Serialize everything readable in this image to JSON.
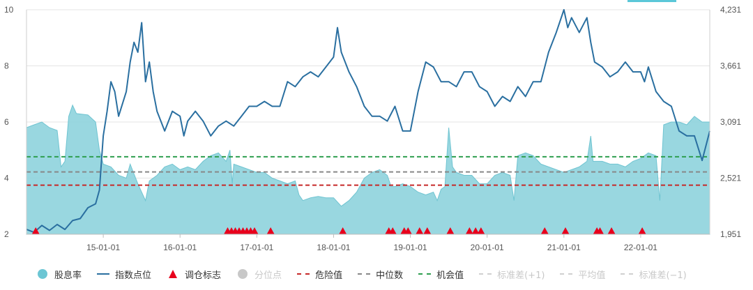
{
  "chart_data": {
    "type": "area+line",
    "title": "",
    "x_ticks": [
      "15-01-01",
      "16-01-01",
      "17-01-01",
      "18-01-01",
      "19-01-01",
      "20-01-01",
      "21-01-01",
      "22-01-01"
    ],
    "y_left_ticks": [
      "2",
      "4",
      "6",
      "8",
      "10"
    ],
    "y_left_range": [
      2,
      10
    ],
    "y_right_ticks": [
      "1,951",
      "2,521",
      "3,091",
      "3,661",
      "4,231"
    ],
    "y_right_range": [
      1951,
      4231
    ],
    "x_range_years": [
      2014.0,
      2022.9
    ],
    "grid": true,
    "legend_position": "bottom",
    "reference_lines": {
      "danger": 3.75,
      "median": 4.22,
      "opportunity": 4.76
    },
    "series": [
      {
        "name": "股息率",
        "type": "area",
        "axis": "left",
        "color": "#8ed3dd",
        "points": [
          [
            2014.0,
            5.8
          ],
          [
            2014.1,
            5.9
          ],
          [
            2014.2,
            6.0
          ],
          [
            2014.3,
            5.8
          ],
          [
            2014.4,
            5.7
          ],
          [
            2014.45,
            4.4
          ],
          [
            2014.5,
            4.6
          ],
          [
            2014.55,
            6.2
          ],
          [
            2014.6,
            6.6
          ],
          [
            2014.65,
            6.3
          ],
          [
            2014.8,
            6.25
          ],
          [
            2014.9,
            6.0
          ],
          [
            2014.95,
            5.0
          ],
          [
            2015.0,
            4.5
          ],
          [
            2015.1,
            4.4
          ],
          [
            2015.2,
            4.1
          ],
          [
            2015.3,
            4.0
          ],
          [
            2015.35,
            4.5
          ],
          [
            2015.45,
            3.8
          ],
          [
            2015.55,
            3.2
          ],
          [
            2015.6,
            3.9
          ],
          [
            2015.7,
            4.1
          ],
          [
            2015.8,
            4.4
          ],
          [
            2015.9,
            4.5
          ],
          [
            2016.0,
            4.3
          ],
          [
            2016.1,
            4.4
          ],
          [
            2016.2,
            4.3
          ],
          [
            2016.3,
            4.6
          ],
          [
            2016.4,
            4.8
          ],
          [
            2016.5,
            4.9
          ],
          [
            2016.6,
            4.6
          ],
          [
            2016.65,
            5.0
          ],
          [
            2016.68,
            3.8
          ],
          [
            2016.7,
            4.5
          ],
          [
            2016.8,
            4.4
          ],
          [
            2016.9,
            4.3
          ],
          [
            2017.0,
            4.2
          ],
          [
            2017.1,
            4.2
          ],
          [
            2017.2,
            4.0
          ],
          [
            2017.3,
            3.9
          ],
          [
            2017.4,
            3.8
          ],
          [
            2017.5,
            3.9
          ],
          [
            2017.55,
            3.4
          ],
          [
            2017.6,
            3.2
          ],
          [
            2017.7,
            3.3
          ],
          [
            2017.8,
            3.35
          ],
          [
            2017.9,
            3.3
          ],
          [
            2018.0,
            3.3
          ],
          [
            2018.1,
            3.0
          ],
          [
            2018.2,
            3.2
          ],
          [
            2018.3,
            3.5
          ],
          [
            2018.4,
            4.0
          ],
          [
            2018.5,
            4.2
          ],
          [
            2018.6,
            4.3
          ],
          [
            2018.7,
            4.1
          ],
          [
            2018.75,
            3.7
          ],
          [
            2018.8,
            3.7
          ],
          [
            2018.9,
            3.8
          ],
          [
            2019.0,
            3.7
          ],
          [
            2019.1,
            3.5
          ],
          [
            2019.2,
            3.4
          ],
          [
            2019.3,
            3.5
          ],
          [
            2019.35,
            3.2
          ],
          [
            2019.4,
            3.6
          ],
          [
            2019.45,
            3.7
          ],
          [
            2019.5,
            5.8
          ],
          [
            2019.55,
            4.4
          ],
          [
            2019.6,
            4.2
          ],
          [
            2019.7,
            4.1
          ],
          [
            2019.8,
            4.1
          ],
          [
            2019.9,
            3.8
          ],
          [
            2020.0,
            3.8
          ],
          [
            2020.1,
            4.1
          ],
          [
            2020.2,
            4.2
          ],
          [
            2020.3,
            4.1
          ],
          [
            2020.35,
            3.2
          ],
          [
            2020.4,
            4.8
          ],
          [
            2020.5,
            4.9
          ],
          [
            2020.6,
            4.8
          ],
          [
            2020.7,
            4.5
          ],
          [
            2020.8,
            4.4
          ],
          [
            2020.9,
            4.3
          ],
          [
            2021.0,
            4.2
          ],
          [
            2021.1,
            4.3
          ],
          [
            2021.2,
            4.4
          ],
          [
            2021.3,
            4.6
          ],
          [
            2021.35,
            5.5
          ],
          [
            2021.38,
            4.6
          ],
          [
            2021.5,
            4.6
          ],
          [
            2021.6,
            4.5
          ],
          [
            2021.7,
            4.5
          ],
          [
            2021.8,
            4.4
          ],
          [
            2021.9,
            4.6
          ],
          [
            2022.0,
            4.7
          ],
          [
            2022.1,
            4.9
          ],
          [
            2022.2,
            4.8
          ],
          [
            2022.25,
            3.2
          ],
          [
            2022.3,
            5.9
          ],
          [
            2022.4,
            6.0
          ],
          [
            2022.5,
            6.0
          ],
          [
            2022.6,
            5.9
          ],
          [
            2022.7,
            6.2
          ],
          [
            2022.8,
            6.0
          ],
          [
            2022.9,
            6.0
          ]
        ]
      },
      {
        "name": "指数点位",
        "type": "line",
        "axis": "right",
        "color": "#2a6fa0",
        "points": [
          [
            2014.0,
            2000
          ],
          [
            2014.1,
            1970
          ],
          [
            2014.2,
            2040
          ],
          [
            2014.3,
            1990
          ],
          [
            2014.4,
            2050
          ],
          [
            2014.5,
            2000
          ],
          [
            2014.6,
            2090
          ],
          [
            2014.7,
            2110
          ],
          [
            2014.8,
            2220
          ],
          [
            2014.9,
            2260
          ],
          [
            2014.95,
            2400
          ],
          [
            2015.0,
            2950
          ],
          [
            2015.05,
            3200
          ],
          [
            2015.1,
            3500
          ],
          [
            2015.15,
            3400
          ],
          [
            2015.2,
            3150
          ],
          [
            2015.3,
            3400
          ],
          [
            2015.35,
            3700
          ],
          [
            2015.4,
            3900
          ],
          [
            2015.45,
            3800
          ],
          [
            2015.5,
            4100
          ],
          [
            2015.55,
            3500
          ],
          [
            2015.6,
            3700
          ],
          [
            2015.65,
            3400
          ],
          [
            2015.7,
            3200
          ],
          [
            2015.8,
            3000
          ],
          [
            2015.9,
            3200
          ],
          [
            2016.0,
            3150
          ],
          [
            2016.05,
            2950
          ],
          [
            2016.1,
            3100
          ],
          [
            2016.2,
            3200
          ],
          [
            2016.3,
            3100
          ],
          [
            2016.4,
            2950
          ],
          [
            2016.5,
            3050
          ],
          [
            2016.6,
            3100
          ],
          [
            2016.7,
            3050
          ],
          [
            2016.8,
            3150
          ],
          [
            2016.9,
            3250
          ],
          [
            2017.0,
            3250
          ],
          [
            2017.1,
            3300
          ],
          [
            2017.2,
            3250
          ],
          [
            2017.3,
            3250
          ],
          [
            2017.4,
            3500
          ],
          [
            2017.5,
            3450
          ],
          [
            2017.6,
            3550
          ],
          [
            2017.7,
            3600
          ],
          [
            2017.8,
            3550
          ],
          [
            2017.9,
            3650
          ],
          [
            2018.0,
            3750
          ],
          [
            2018.05,
            4050
          ],
          [
            2018.1,
            3800
          ],
          [
            2018.2,
            3600
          ],
          [
            2018.3,
            3450
          ],
          [
            2018.4,
            3250
          ],
          [
            2018.5,
            3150
          ],
          [
            2018.6,
            3150
          ],
          [
            2018.7,
            3100
          ],
          [
            2018.8,
            3250
          ],
          [
            2018.9,
            3000
          ],
          [
            2019.0,
            3000
          ],
          [
            2019.1,
            3400
          ],
          [
            2019.2,
            3700
          ],
          [
            2019.3,
            3650
          ],
          [
            2019.4,
            3500
          ],
          [
            2019.5,
            3500
          ],
          [
            2019.6,
            3450
          ],
          [
            2019.7,
            3600
          ],
          [
            2019.8,
            3600
          ],
          [
            2019.9,
            3450
          ],
          [
            2020.0,
            3400
          ],
          [
            2020.1,
            3250
          ],
          [
            2020.2,
            3350
          ],
          [
            2020.3,
            3300
          ],
          [
            2020.4,
            3450
          ],
          [
            2020.5,
            3350
          ],
          [
            2020.6,
            3500
          ],
          [
            2020.7,
            3500
          ],
          [
            2020.8,
            3800
          ],
          [
            2020.9,
            4000
          ],
          [
            2021.0,
            4231
          ],
          [
            2021.05,
            4050
          ],
          [
            2021.1,
            4150
          ],
          [
            2021.2,
            4000
          ],
          [
            2021.3,
            4150
          ],
          [
            2021.35,
            3900
          ],
          [
            2021.4,
            3700
          ],
          [
            2021.5,
            3650
          ],
          [
            2021.6,
            3550
          ],
          [
            2021.7,
            3600
          ],
          [
            2021.8,
            3700
          ],
          [
            2021.9,
            3600
          ],
          [
            2022.0,
            3600
          ],
          [
            2022.05,
            3500
          ],
          [
            2022.1,
            3650
          ],
          [
            2022.2,
            3400
          ],
          [
            2022.3,
            3300
          ],
          [
            2022.4,
            3250
          ],
          [
            2022.5,
            3000
          ],
          [
            2022.6,
            2950
          ],
          [
            2022.7,
            2950
          ],
          [
            2022.8,
            2700
          ],
          [
            2022.9,
            3000
          ]
        ]
      },
      {
        "name": "调仓标志",
        "type": "scatter",
        "axis": "left",
        "color": "#e8001c",
        "x": [
          2014.12,
          2016.62,
          2016.67,
          2016.72,
          2016.77,
          2016.82,
          2016.87,
          2016.92,
          2016.97,
          2017.18,
          2018.12,
          2018.72,
          2018.77,
          2018.92,
          2018.97,
          2019.12,
          2019.22,
          2019.52,
          2019.77,
          2019.85,
          2019.92,
          2020.75,
          2021.02,
          2021.43,
          2021.47,
          2021.62,
          2022.02
        ],
        "y": 2
      }
    ]
  },
  "legend": [
    {
      "label": "股息率",
      "sym": "dot",
      "color": "#6cc6d4",
      "off": false
    },
    {
      "label": "指数点位",
      "sym": "line",
      "color": "#2a6fa0",
      "off": false
    },
    {
      "label": "调仓标志",
      "sym": "tri",
      "color": "#e8001c",
      "off": false
    },
    {
      "label": "分位点",
      "sym": "dot",
      "color": "#c8c8c8",
      "off": true
    },
    {
      "label": "危险值",
      "sym": "dash",
      "color": "#c62828",
      "off": false
    },
    {
      "label": "中位数",
      "sym": "dash",
      "color": "#888888",
      "off": false
    },
    {
      "label": "机会值",
      "sym": "dash",
      "color": "#2e9e4f",
      "off": false
    },
    {
      "label": "标准差(+1)",
      "sym": "dash",
      "color": "#d0d0d0",
      "off": true
    },
    {
      "label": "平均值",
      "sym": "dash",
      "color": "#d0d0d0",
      "off": true
    },
    {
      "label": "标准差(−1)",
      "sym": "dash",
      "color": "#d0d0d0",
      "off": true
    }
  ]
}
